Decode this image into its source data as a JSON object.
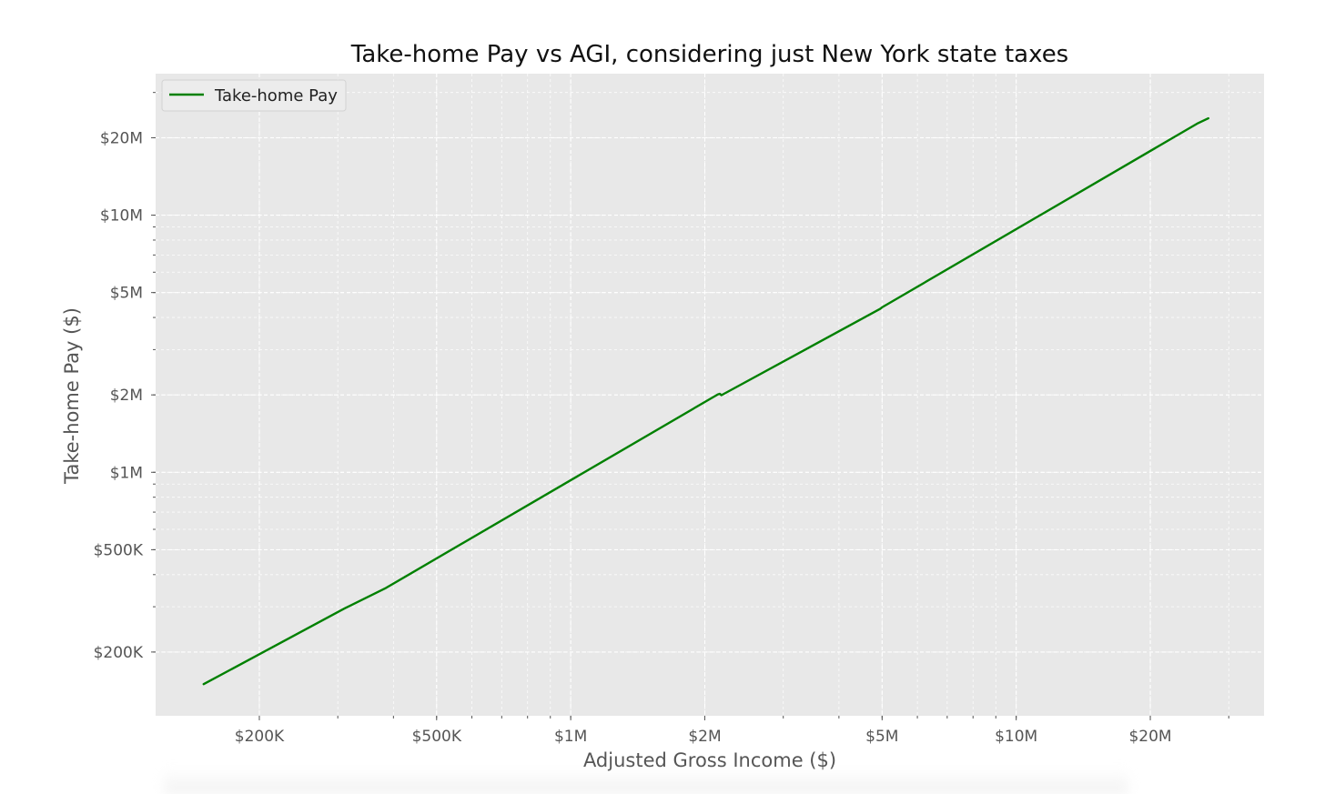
{
  "chart_data": {
    "type": "line",
    "title": "Take-home Pay vs AGI, considering just New York state taxes",
    "xlabel": "Adjusted Gross Income ($)",
    "ylabel": "Take-home Pay ($)",
    "xscale": "log",
    "yscale": "log",
    "xlim": [
      117000,
      36000000
    ],
    "ylim": [
      113000,
      35500000
    ],
    "x_ticks": [
      {
        "value": 200000,
        "label": "$200K"
      },
      {
        "value": 500000,
        "label": "$500K"
      },
      {
        "value": 1000000,
        "label": "$1M"
      },
      {
        "value": 2000000,
        "label": "$2M"
      },
      {
        "value": 5000000,
        "label": "$5M"
      },
      {
        "value": 10000000,
        "label": "$10M"
      },
      {
        "value": 20000000,
        "label": "$20M"
      }
    ],
    "y_ticks": [
      {
        "value": 200000,
        "label": "$200K"
      },
      {
        "value": 500000,
        "label": "$500K"
      },
      {
        "value": 1000000,
        "label": "$1M"
      },
      {
        "value": 2000000,
        "label": "$2M"
      },
      {
        "value": 5000000,
        "label": "$5M"
      },
      {
        "value": 10000000,
        "label": "$10M"
      },
      {
        "value": 20000000,
        "label": "$20M"
      }
    ],
    "grid": true,
    "legend_position": "top-left",
    "series": [
      {
        "name": "Take-home Pay",
        "color": "#008000",
        "x": [
          150000,
          310000,
          385000,
          2140000,
          2160000,
          2180000,
          4950000,
          5000000,
          25600000,
          27000000
        ],
        "y": [
          150000,
          295000,
          355000,
          2010000,
          2020000,
          1995000,
          4320000,
          4380000,
          22800000,
          23800000
        ]
      }
    ]
  },
  "colors": {
    "plot_background": "#e8e8e8",
    "grid": "#ffffff",
    "line": "#008000"
  }
}
